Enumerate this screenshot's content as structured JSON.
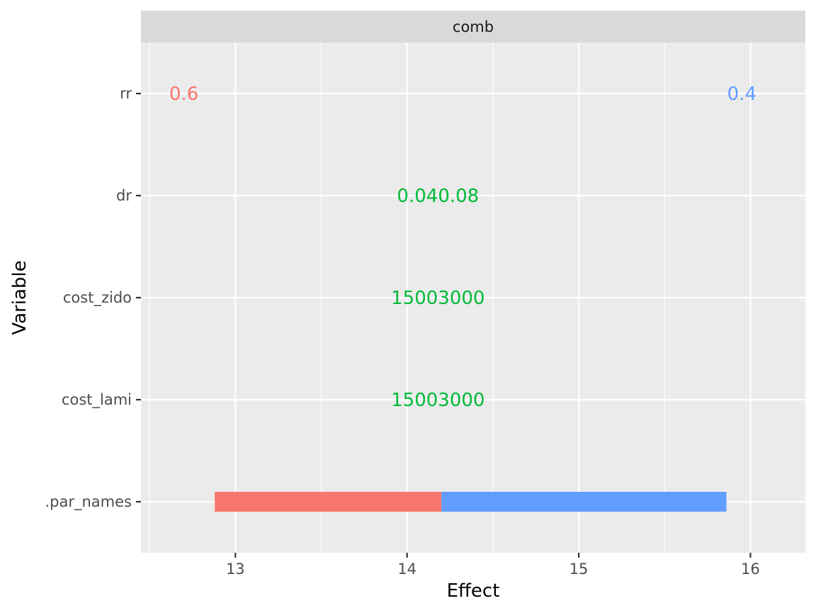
{
  "chart_data": {
    "type": "bar",
    "orientation": "horizontal",
    "facet": "comb",
    "xlabel": "Effect",
    "ylabel": "Variable",
    "xlim": [
      12.45,
      16.32
    ],
    "x_ticks": [
      13,
      14,
      15,
      16
    ],
    "categories": [
      ".par_names",
      "cost_lami",
      "cost_zido",
      "dr",
      "rr"
    ],
    "bars": [
      {
        "category": ".par_names",
        "x_start": 12.88,
        "x_end": 14.2,
        "color": "#F8766D"
      },
      {
        "category": ".par_names",
        "x_start": 14.2,
        "x_end": 15.86,
        "color": "#619CFF"
      }
    ],
    "labels": [
      {
        "category": "rr",
        "x": 12.7,
        "text": "0.6",
        "color": "#F8766D"
      },
      {
        "category": "rr",
        "x": 15.95,
        "text": "0.4",
        "color": "#619CFF"
      },
      {
        "category": "dr",
        "x": 14.18,
        "text": "0.040.08",
        "color": "#00BA38"
      },
      {
        "category": "cost_zido",
        "x": 14.18,
        "text": "15003000",
        "color": "#00BA38"
      },
      {
        "category": "cost_lami",
        "x": 14.18,
        "text": "15003000",
        "color": "#00BA38"
      }
    ],
    "grid": true,
    "colors": {
      "panel": "#EBEBEB",
      "strip": "#D9D9D9",
      "grid": "#FFFFFF"
    }
  }
}
